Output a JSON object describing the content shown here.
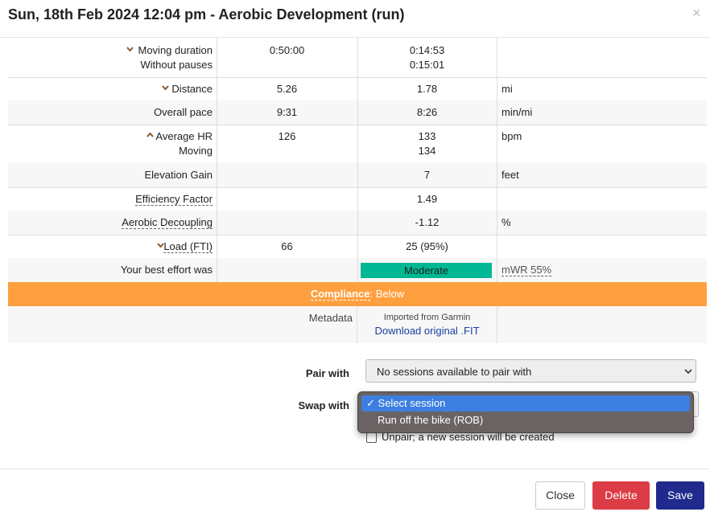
{
  "header": {
    "title": "Sun, 18th Feb 2024 12:04 pm - Aerobic Development (run)",
    "close": "×"
  },
  "table": {
    "rows": [
      {
        "label": "Moving duration",
        "sublabel": "Without pauses",
        "planned": "0:50:00",
        "actual": "0:14:53",
        "actual_sub": "0:15:01"
      },
      {
        "label": "Distance",
        "planned": "5.26",
        "actual": "1.78",
        "unit": "mi"
      },
      {
        "label": "Overall pace",
        "planned": "9:31",
        "actual": "8:26",
        "unit": "min/mi"
      },
      {
        "label": "Average HR",
        "sublabel": "Moving",
        "planned": "126",
        "actual": "133",
        "actual_sub": "134",
        "unit": "bpm"
      },
      {
        "label": "Elevation Gain",
        "actual": "7",
        "unit": "feet"
      },
      {
        "label": "Efficiency Factor",
        "actual": "1.49"
      },
      {
        "label": "Aerobic Decoupling",
        "actual": "-1.12",
        "unit": "%"
      },
      {
        "label": "Load (FTI)",
        "planned": "66",
        "actual": "25 (95%)"
      },
      {
        "label": "Your best effort was",
        "actual": "Moderate",
        "unit": "mWR 55%"
      }
    ],
    "compliance": {
      "label": "Compliance",
      "value": ": Below"
    },
    "metadata": {
      "label": "Metadata",
      "source": "Imported from Garmin",
      "link": "Download original .FIT"
    }
  },
  "form": {
    "pair_label": "Pair with",
    "pair_value": "No sessions available to pair with",
    "swap_label": "Swap with",
    "swap_options": [
      "Select session",
      "Run off the bike (ROB)"
    ],
    "unpair": "Unpair; a new session will be created"
  },
  "footer": {
    "close": "Close",
    "delete": "Delete",
    "save": "Save"
  }
}
